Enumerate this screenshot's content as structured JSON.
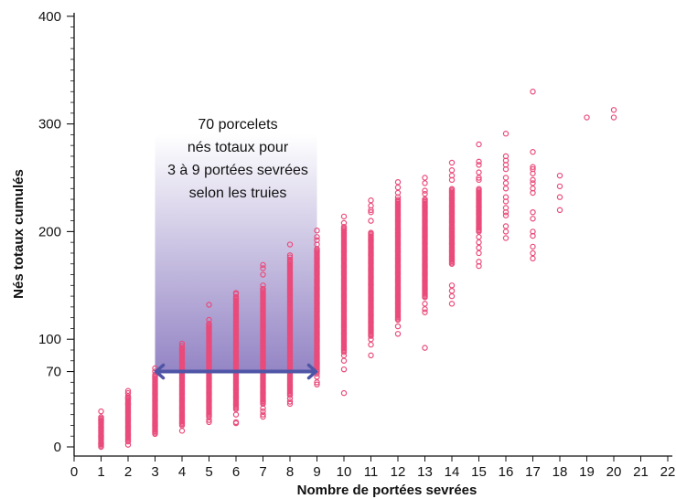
{
  "chart_data": {
    "type": "scatter",
    "title": "",
    "xlabel": "Nombre de portées sevrées",
    "ylabel": "Nés totaux cumulés",
    "xlim": [
      0,
      22
    ],
    "ylim": [
      -5,
      405
    ],
    "x_ticks": [
      0,
      1,
      2,
      3,
      4,
      5,
      6,
      7,
      8,
      9,
      10,
      11,
      12,
      13,
      14,
      15,
      16,
      17,
      18,
      19,
      20,
      21,
      22
    ],
    "y_ticks": [
      0,
      70,
      100,
      200,
      300,
      400
    ],
    "grid": false,
    "legend": "none",
    "colors": {
      "points": "#e94b7b",
      "arrow": "#4f55a6",
      "band_top": "#ffffff",
      "band_bottom": "#8f7fc2"
    },
    "band": {
      "x_from": 3,
      "x_to": 9
    },
    "arrow": {
      "x_from": 3,
      "x_to": 9,
      "y": 70
    },
    "annotation": [
      "70 porcelets",
      "nés totaux pour",
      "3 à 9 portées sevrées",
      "selon les truies"
    ],
    "series": [
      {
        "marker": "open-circle",
        "columns": [
          {
            "x": 1,
            "dense_range": [
              0,
              28
            ],
            "points": [
              33,
              25,
              18,
              10,
              3
            ]
          },
          {
            "x": 2,
            "dense_range": [
              5,
              48
            ],
            "points": [
              52,
              50,
              45,
              40,
              2
            ]
          },
          {
            "x": 3,
            "dense_range": [
              12,
              68
            ],
            "points": [
              73,
              70,
              65,
              20
            ]
          },
          {
            "x": 4,
            "dense_range": [
              20,
              93
            ],
            "points": [
              96,
              94,
              90,
              15
            ]
          },
          {
            "x": 5,
            "dense_range": [
              28,
              115
            ],
            "points": [
              132,
              118,
              110,
              25,
              23
            ]
          },
          {
            "x": 6,
            "dense_range": [
              35,
              140
            ],
            "points": [
              143,
              142,
              138,
              30,
              23,
              22
            ]
          },
          {
            "x": 7,
            "dense_range": [
              40,
              148
            ],
            "points": [
              169,
              166,
              160,
              150,
              36,
              33,
              30,
              28
            ]
          },
          {
            "x": 8,
            "dense_range": [
              48,
              175
            ],
            "points": [
              188,
              178,
              176,
              45,
              42,
              40
            ]
          },
          {
            "x": 9,
            "dense_range": [
              70,
              185
            ],
            "points": [
              201,
              195,
              192,
              188,
              68,
              65,
              60,
              58
            ]
          },
          {
            "x": 10,
            "dense_range": [
              88,
              205
            ],
            "points": [
              214,
              208,
              85,
              80,
              72,
              50
            ]
          },
          {
            "x": 11,
            "dense_range": [
              103,
              200
            ],
            "points": [
              229,
              224,
              220,
              218,
              210,
              100,
              95,
              85
            ]
          },
          {
            "x": 12,
            "dense_range": [
              118,
              230
            ],
            "points": [
              246,
              241,
              236,
              232,
              112,
              105
            ]
          },
          {
            "x": 13,
            "dense_range": [
              140,
              230
            ],
            "points": [
              250,
              245,
              238,
              235,
              139,
              133,
              128,
              125,
              92
            ]
          },
          {
            "x": 14,
            "dense_range": [
              170,
              240
            ],
            "points": [
              264,
              257,
              252,
              248,
              150,
              145,
              140,
              133
            ]
          },
          {
            "x": 15,
            "dense_range": [
              200,
              240
            ],
            "points": [
              281,
              265,
              262,
              255,
              250,
              248,
              195,
              190,
              185,
              180,
              172,
              168
            ]
          },
          {
            "x": 16,
            "points": [
              291,
              270,
              266,
              262,
              258,
              250,
              245,
              240,
              232,
              228,
              222,
              218,
              215,
              205,
              200,
              194
            ]
          },
          {
            "x": 17,
            "points": [
              330,
              274,
              260,
              258,
              254,
              248,
              245,
              240,
              236,
              218,
              212,
              200,
              196,
              186,
              180,
              175
            ]
          },
          {
            "x": 18,
            "points": [
              252,
              242,
              232,
              220
            ]
          },
          {
            "x": 19,
            "points": [
              306
            ]
          },
          {
            "x": 20,
            "points": [
              313,
              306
            ]
          }
        ]
      }
    ]
  }
}
